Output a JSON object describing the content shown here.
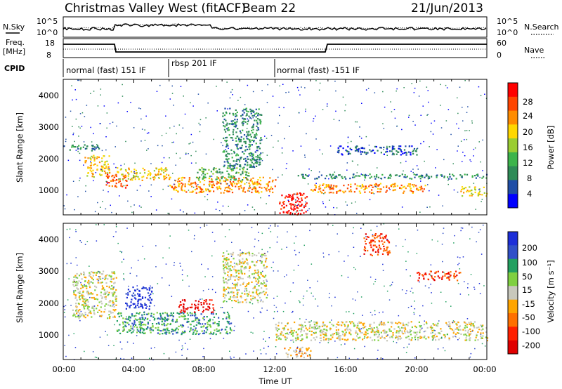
{
  "header": {
    "station": "Christmas Valley West (fitACF)",
    "beam": "Beam 22",
    "date": "21/Jun/2013"
  },
  "side_labels": {
    "nsky": "N.Sky",
    "nsearch": "N.Search",
    "freq_line1": "Freq.",
    "freq_line2": "[MHz]",
    "nave": "Nave",
    "cpid": "CPID"
  },
  "noise_axis_ticks": [
    "10^5",
    "10^0"
  ],
  "freq_ticks": [
    "18",
    "8"
  ],
  "nave_ticks": [
    "60",
    "0"
  ],
  "cpid_segments": [
    {
      "label": "normal (fast) 151 IF",
      "start_hour": 0,
      "end_hour": 6
    },
    {
      "label": "rbsp 201 IF",
      "start_hour": 6,
      "end_hour": 12
    },
    {
      "label": "normal (fast) -151 IF",
      "start_hour": 12,
      "end_hour": 24
    }
  ],
  "x_axis": {
    "label": "Time UT",
    "ticks": [
      "00:00",
      "04:00",
      "08:00",
      "12:00",
      "16:00",
      "20:00",
      "00:00"
    ],
    "range_hours": [
      0,
      24
    ]
  },
  "power_panel": {
    "ylabel": "Slant Range [km]",
    "yticks": [
      "4000",
      "3000",
      "2000",
      "1000"
    ],
    "colorbar_label": "Power [dB]",
    "colorbar_ticks": [
      "28",
      "24",
      "20",
      "16",
      "12",
      "8",
      "4"
    ],
    "colors": [
      "#0000ff",
      "#1f4ea6",
      "#2e8b57",
      "#3cb44b",
      "#9acd32",
      "#ffd700",
      "#ff8c00",
      "#ff4500",
      "#ff0000"
    ]
  },
  "velocity_panel": {
    "ylabel": "Slant Range [km]",
    "yticks": [
      "4000",
      "3000",
      "2000",
      "1000"
    ],
    "colorbar_label": "Velocity [m s⁻¹]",
    "colorbar_ticks": [
      "200",
      "100",
      "50",
      "15",
      "-15",
      "-50",
      "-100",
      "-200"
    ],
    "colors": [
      "#1c2ed8",
      "#3050c8",
      "#22a060",
      "#7fd040",
      "#c8c8bc",
      "#ffa500",
      "#ff7000",
      "#ff2000",
      "#e00000"
    ]
  },
  "chart_data": {
    "type": "heatmap",
    "x_unit": "hours UT",
    "y_unit": "slant range km",
    "ylim": [
      180,
      4500
    ],
    "xlim": [
      0,
      24
    ],
    "power_bands": [
      {
        "t0": 0.0,
        "t1": 2.0,
        "r0": 2250,
        "r1": 2450,
        "level": 2
      },
      {
        "t0": 1.2,
        "t1": 2.6,
        "r0": 1400,
        "r1": 2100,
        "level": 5
      },
      {
        "t0": 2.4,
        "t1": 3.6,
        "r0": 1050,
        "r1": 1500,
        "level": 7
      },
      {
        "t0": 3.0,
        "t1": 6.0,
        "r0": 1300,
        "r1": 1700,
        "level": 5
      },
      {
        "t0": 6.0,
        "t1": 12.0,
        "r0": 900,
        "r1": 1400,
        "level": 6
      },
      {
        "t0": 7.5,
        "t1": 10.5,
        "r0": 1300,
        "r1": 1700,
        "level": 3
      },
      {
        "t0": 9.0,
        "t1": 11.2,
        "r0": 1700,
        "r1": 3600,
        "level": 2
      },
      {
        "t0": 12.2,
        "t1": 13.8,
        "r0": 200,
        "r1": 900,
        "level": 8
      },
      {
        "t0": 14.0,
        "t1": 20.5,
        "r0": 900,
        "r1": 1200,
        "level": 6
      },
      {
        "t0": 13.0,
        "t1": 24.0,
        "r0": 1350,
        "r1": 1500,
        "level": 2
      },
      {
        "t0": 15.5,
        "t1": 20.0,
        "r0": 2100,
        "r1": 2400,
        "level": 1
      },
      {
        "t0": 22.5,
        "t1": 24.0,
        "r0": 800,
        "r1": 1100,
        "level": 5
      }
    ],
    "velocity_bands": [
      {
        "t0": 0.5,
        "t1": 3.0,
        "r0": 1500,
        "r1": 3000,
        "level": 4
      },
      {
        "t0": 3.0,
        "t1": 9.5,
        "r0": 1000,
        "r1": 1700,
        "level": 2
      },
      {
        "t0": 3.5,
        "t1": 5.0,
        "r0": 1800,
        "r1": 2500,
        "level": 0
      },
      {
        "t0": 6.5,
        "t1": 8.5,
        "r0": 1700,
        "r1": 2100,
        "level": 8
      },
      {
        "t0": 9.0,
        "t1": 11.5,
        "r0": 2000,
        "r1": 3600,
        "level": 4
      },
      {
        "t0": 12.0,
        "t1": 24.0,
        "r0": 800,
        "r1": 1400,
        "level": 4
      },
      {
        "t0": 12.5,
        "t1": 14.0,
        "r0": 250,
        "r1": 600,
        "level": 5
      },
      {
        "t0": 17.0,
        "t1": 18.5,
        "r0": 3500,
        "r1": 4200,
        "level": 7
      },
      {
        "t0": 20.0,
        "t1": 22.5,
        "r0": 2700,
        "r1": 3000,
        "level": 7
      }
    ]
  }
}
